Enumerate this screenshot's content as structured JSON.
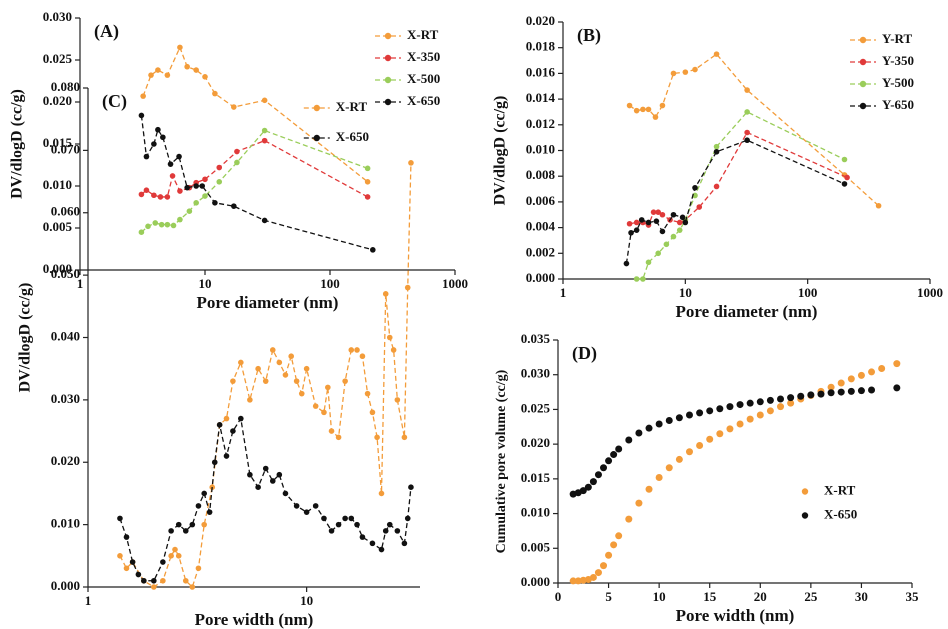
{
  "chart_data": [
    {
      "type": "line",
      "panel_label": "(A)",
      "x_label": "Pore diameter (nm)",
      "y_label": "DV/dlogD (cc/g)",
      "xscale": "log",
      "xlim": [
        1,
        1000
      ],
      "xticks": [
        1,
        10,
        100,
        1000
      ],
      "ylim": [
        0,
        0.03
      ],
      "yticks": [
        {
          "value": 0,
          "label": "0.000"
        },
        {
          "value": 0.005,
          "label": "0.005"
        },
        {
          "value": 0.01,
          "label": "0.010"
        },
        {
          "value": 0.015,
          "label": "0.015"
        },
        {
          "value": 0.02,
          "label": "0.020"
        },
        {
          "value": 0.025,
          "label": "0.025"
        },
        {
          "value": 0.03,
          "label": "0.030"
        }
      ],
      "line_style": "dashed",
      "legend": "upper right",
      "series": [
        {
          "name": "X-RT",
          "color": "#f39c3a",
          "x": [
            3.2,
            3.7,
            4.2,
            5,
            6.3,
            7.2,
            8.5,
            10,
            12,
            17,
            30,
            200
          ],
          "values": [
            0.0207,
            0.0232,
            0.0238,
            0.0232,
            0.0265,
            0.0242,
            0.0238,
            0.023,
            0.021,
            0.0194,
            0.0202,
            0.0105
          ]
        },
        {
          "name": "X-350",
          "color": "#e03a3a",
          "x": [
            3.1,
            3.4,
            3.9,
            4.4,
            5,
            5.5,
            6.3,
            7.5,
            8.5,
            10,
            13,
            18,
            30,
            200
          ],
          "values": [
            0.009,
            0.0095,
            0.0089,
            0.0087,
            0.0087,
            0.0112,
            0.0094,
            0.0098,
            0.0104,
            0.0108,
            0.0122,
            0.0141,
            0.0154,
            0.0087
          ]
        },
        {
          "name": "X-500",
          "color": "#9acd5a",
          "x": [
            3.1,
            3.5,
            4,
            4.5,
            5,
            5.6,
            6.3,
            7.5,
            8.5,
            10,
            13,
            18,
            30,
            200
          ],
          "values": [
            0.0045,
            0.0052,
            0.0056,
            0.0054,
            0.0054,
            0.0053,
            0.006,
            0.007,
            0.008,
            0.0088,
            0.0105,
            0.0128,
            0.0166,
            0.0121
          ]
        },
        {
          "name": "X-650",
          "color": "#111111",
          "x": [
            3.1,
            3.4,
            3.9,
            4.2,
            4.6,
            5.3,
            6.2,
            7.2,
            8.5,
            9.5,
            12,
            17,
            30,
            220
          ],
          "values": [
            0.0184,
            0.0135,
            0.015,
            0.0167,
            0.0158,
            0.0126,
            0.0135,
            0.0098,
            0.01,
            0.01,
            0.008,
            0.0076,
            0.0059,
            0.0024
          ]
        }
      ]
    },
    {
      "type": "line",
      "panel_label": "(B)",
      "x_label": "Pore diameter (nm)",
      "y_label": "DV/dlogD (cc/g)",
      "xscale": "log",
      "xlim": [
        1,
        1000
      ],
      "xticks": [
        1,
        10,
        100,
        1000
      ],
      "ylim": [
        0,
        0.02
      ],
      "yticks": [
        {
          "value": 0,
          "label": "0.000"
        },
        {
          "value": 0.002,
          "label": "0.002"
        },
        {
          "value": 0.004,
          "label": "0.004"
        },
        {
          "value": 0.006,
          "label": "0.006"
        },
        {
          "value": 0.008,
          "label": "0.008"
        },
        {
          "value": 0.01,
          "label": "0.010"
        },
        {
          "value": 0.012,
          "label": "0.012"
        },
        {
          "value": 0.014,
          "label": "0.014"
        },
        {
          "value": 0.016,
          "label": "0.016"
        },
        {
          "value": 0.018,
          "label": "0.018"
        },
        {
          "value": 0.02,
          "label": "0.020"
        }
      ],
      "line_style": "dashed",
      "legend": "upper right",
      "series": [
        {
          "name": "Y-RT",
          "color": "#f39c3a",
          "x": [
            3.5,
            4,
            4.5,
            5,
            5.7,
            6.5,
            8,
            10,
            12,
            18,
            32,
            200,
            380
          ],
          "values": [
            0.0135,
            0.0131,
            0.0132,
            0.0132,
            0.0126,
            0.0135,
            0.016,
            0.0161,
            0.0163,
            0.0175,
            0.0147,
            0.0081,
            0.0057
          ]
        },
        {
          "name": "Y-350",
          "color": "#e03a3a",
          "x": [
            3.5,
            4,
            4.5,
            5,
            5.5,
            6,
            6.5,
            7.5,
            9,
            10,
            13,
            18,
            32,
            210
          ],
          "values": [
            0.0043,
            0.0044,
            0.0044,
            0.0042,
            0.0052,
            0.0052,
            0.005,
            0.0046,
            0.0044,
            0.0046,
            0.0056,
            0.0072,
            0.0114,
            0.0079
          ]
        },
        {
          "name": "Y-500",
          "color": "#9acd5a",
          "x": [
            4,
            4.5,
            5,
            6,
            7,
            8,
            9,
            10,
            12,
            18,
            32,
            200
          ],
          "values": [
            0,
            0,
            0.0013,
            0.002,
            0.0027,
            0.0033,
            0.0038,
            0.0046,
            0.0065,
            0.0103,
            0.013,
            0.0093
          ]
        },
        {
          "name": "Y-650",
          "color": "#111111",
          "x": [
            3.3,
            3.6,
            4,
            4.4,
            5,
            5.8,
            6.5,
            8,
            9.5,
            10,
            12,
            18,
            32,
            200
          ],
          "values": [
            0.0012,
            0.0036,
            0.0038,
            0.0046,
            0.0044,
            0.0045,
            0.0037,
            0.005,
            0.0048,
            0.0044,
            0.0071,
            0.0099,
            0.0108,
            0.0074
          ]
        }
      ]
    },
    {
      "type": "line",
      "panel_label": "(C)",
      "x_label": "Pore width (nm)",
      "y_label": "DV/dlogD (cc/g)",
      "xscale": "log",
      "xlim": [
        1,
        33
      ],
      "xticks": [
        1,
        10
      ],
      "ylim": [
        0,
        0.08
      ],
      "yticks": [
        {
          "value": 0,
          "label": "0.000"
        },
        {
          "value": 0.01,
          "label": "0.010"
        },
        {
          "value": 0.02,
          "label": "0.020"
        },
        {
          "value": 0.03,
          "label": "0.030"
        },
        {
          "value": 0.04,
          "label": "0.040"
        },
        {
          "value": 0.05,
          "label": "0.050"
        },
        {
          "value": 0.06,
          "label": "0.060"
        },
        {
          "value": 0.07,
          "label": "0.070"
        },
        {
          "value": 0.08,
          "label": "0.080"
        }
      ],
      "line_style": "dashed",
      "legend": "upper center",
      "series": [
        {
          "name": "X-RT",
          "color": "#f39c3a",
          "x": [
            1.4,
            1.5,
            1.6,
            1.8,
            2.0,
            2.2,
            2.4,
            2.5,
            2.6,
            2.8,
            3.0,
            3.2,
            3.4,
            3.7,
            4.0,
            4.3,
            4.6,
            5.0,
            5.5,
            6.0,
            6.5,
            7.0,
            7.5,
            8.0,
            8.5,
            9.0,
            9.5,
            10,
            11,
            12,
            12.5,
            13,
            14,
            15,
            16,
            17,
            18,
            19,
            20,
            21,
            22,
            23,
            24,
            25,
            26,
            28,
            29,
            30
          ],
          "values": [
            0.005,
            0.003,
            0.004,
            0.001,
            0.0,
            0.001,
            0.005,
            0.006,
            0.005,
            0.001,
            0.0,
            0.003,
            0.01,
            0.016,
            0.026,
            0.027,
            0.033,
            0.036,
            0.03,
            0.035,
            0.033,
            0.038,
            0.036,
            0.034,
            0.037,
            0.033,
            0.031,
            0.035,
            0.029,
            0.028,
            0.032,
            0.025,
            0.024,
            0.033,
            0.038,
            0.038,
            0.037,
            0.031,
            0.028,
            0.024,
            0.015,
            0.047,
            0.04,
            0.038,
            0.03,
            0.024,
            0.048,
            0.068
          ]
        },
        {
          "name": "X-650",
          "color": "#111111",
          "x": [
            1.4,
            1.5,
            1.6,
            1.7,
            1.8,
            2.0,
            2.2,
            2.4,
            2.6,
            2.8,
            3.0,
            3.2,
            3.4,
            3.6,
            3.8,
            4.0,
            4.3,
            4.6,
            5.0,
            5.5,
            6.0,
            6.5,
            7.0,
            7.5,
            8,
            9,
            10,
            11,
            12,
            13,
            14,
            15,
            16,
            17,
            18,
            20,
            22,
            23,
            24,
            26,
            28,
            29,
            30
          ],
          "values": [
            0.011,
            0.008,
            0.004,
            0.002,
            0.001,
            0.001,
            0.004,
            0.009,
            0.01,
            0.009,
            0.01,
            0.013,
            0.015,
            0.012,
            0.02,
            0.026,
            0.021,
            0.025,
            0.027,
            0.018,
            0.016,
            0.019,
            0.017,
            0.018,
            0.015,
            0.013,
            0.012,
            0.013,
            0.011,
            0.009,
            0.01,
            0.011,
            0.011,
            0.01,
            0.008,
            0.007,
            0.006,
            0.009,
            0.01,
            0.009,
            0.007,
            0.011,
            0.016
          ]
        }
      ]
    },
    {
      "type": "line",
      "panel_label": "(D)",
      "x_label": "Pore width (nm)",
      "y_label": "Cumulative pore volume (cc/g)",
      "xscale": "linear",
      "xlim": [
        0,
        35
      ],
      "xticks": [
        0,
        5,
        10,
        15,
        20,
        25,
        30,
        35
      ],
      "ylim": [
        0,
        0.035
      ],
      "yticks": [
        {
          "value": 0,
          "label": "0.000"
        },
        {
          "value": 0.005,
          "label": "0.005"
        },
        {
          "value": 0.01,
          "label": "0.010"
        },
        {
          "value": 0.015,
          "label": "0.015"
        },
        {
          "value": 0.02,
          "label": "0.020"
        },
        {
          "value": 0.025,
          "label": "0.025"
        },
        {
          "value": 0.03,
          "label": "0.030"
        },
        {
          "value": 0.035,
          "label": "0.035"
        }
      ],
      "line_style": "none",
      "legend": "center right",
      "series": [
        {
          "name": "X-RT",
          "color": "#f39c3a",
          "x": [
            1.5,
            2,
            2.5,
            3,
            3.5,
            4,
            4.5,
            5,
            5.5,
            6,
            7,
            8,
            9,
            10,
            11,
            12,
            13,
            14,
            15,
            16,
            17,
            18,
            19,
            20,
            21,
            22,
            23,
            24,
            25,
            26,
            27,
            28,
            29,
            30,
            31,
            32,
            33.5
          ],
          "values": [
            0.0003,
            0.0003,
            0.0004,
            0.0005,
            0.0008,
            0.0015,
            0.0025,
            0.004,
            0.0055,
            0.0068,
            0.0092,
            0.0115,
            0.0135,
            0.0152,
            0.0166,
            0.0178,
            0.0189,
            0.0198,
            0.0207,
            0.0215,
            0.0222,
            0.0229,
            0.0236,
            0.0242,
            0.0248,
            0.0254,
            0.0259,
            0.0265,
            0.027,
            0.0276,
            0.0282,
            0.0288,
            0.0294,
            0.0299,
            0.0304,
            0.0309,
            0.0316
          ]
        },
        {
          "name": "X-650",
          "color": "#111111",
          "x": [
            1.5,
            2,
            2.5,
            3,
            3.5,
            4,
            4.5,
            5,
            5.5,
            6,
            7,
            8,
            9,
            10,
            11,
            12,
            13,
            14,
            15,
            16,
            17,
            18,
            19,
            20,
            21,
            22,
            23,
            24,
            25,
            26,
            27,
            28,
            29,
            30,
            31,
            33.5
          ],
          "values": [
            0.0128,
            0.013,
            0.0133,
            0.0138,
            0.0146,
            0.0156,
            0.0166,
            0.0176,
            0.0185,
            0.0193,
            0.0206,
            0.0216,
            0.0223,
            0.0229,
            0.0234,
            0.0238,
            0.0242,
            0.0245,
            0.0248,
            0.0251,
            0.0254,
            0.0257,
            0.0259,
            0.0261,
            0.0263,
            0.0265,
            0.0267,
            0.0269,
            0.0271,
            0.0272,
            0.0274,
            0.0275,
            0.0276,
            0.0277,
            0.0278,
            0.0281
          ]
        }
      ]
    }
  ]
}
